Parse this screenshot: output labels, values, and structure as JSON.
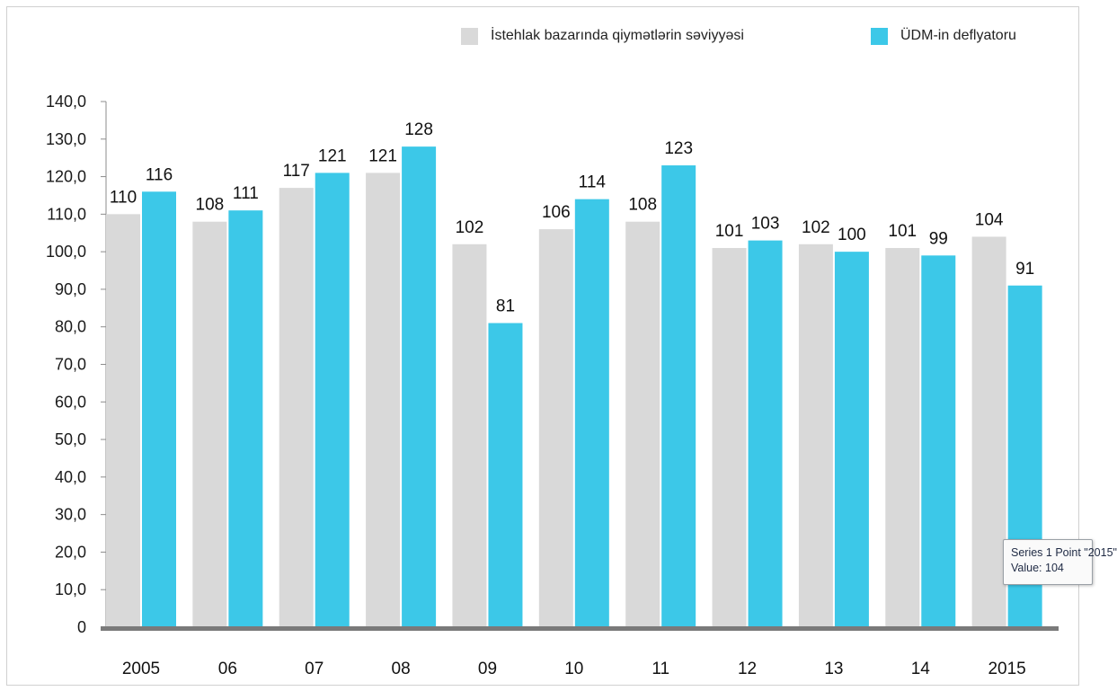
{
  "chart_data": {
    "type": "bar",
    "categories": [
      "2005",
      "06",
      "07",
      "08",
      "09",
      "10",
      "11",
      "12",
      "13",
      "14",
      "2015"
    ],
    "series": [
      {
        "name": "İstehlak bazarında qiymətlərin səviyyəsi",
        "color": "#d9d9d9",
        "values": [
          110,
          108,
          117,
          121,
          102,
          106,
          108,
          101,
          102,
          101,
          104
        ]
      },
      {
        "name": "ÜDM-in deflyatoru",
        "color": "#3cc8e8",
        "values": [
          116,
          111,
          121,
          128,
          81,
          114,
          123,
          103,
          100,
          99,
          91
        ]
      }
    ],
    "ylim": [
      0,
      140
    ],
    "yticks": [
      "0",
      "10,0",
      "20,0",
      "30,0",
      "40,0",
      "50,0",
      "60,0",
      "70,0",
      "80,0",
      "90,0",
      "100,0",
      "110,0",
      "120,0",
      "130,0",
      "140,0"
    ],
    "legend_position": "top-right",
    "grid": false
  },
  "tooltip": {
    "line1": "Series 1 Point \"2015\"",
    "line2": "Value: 104"
  }
}
